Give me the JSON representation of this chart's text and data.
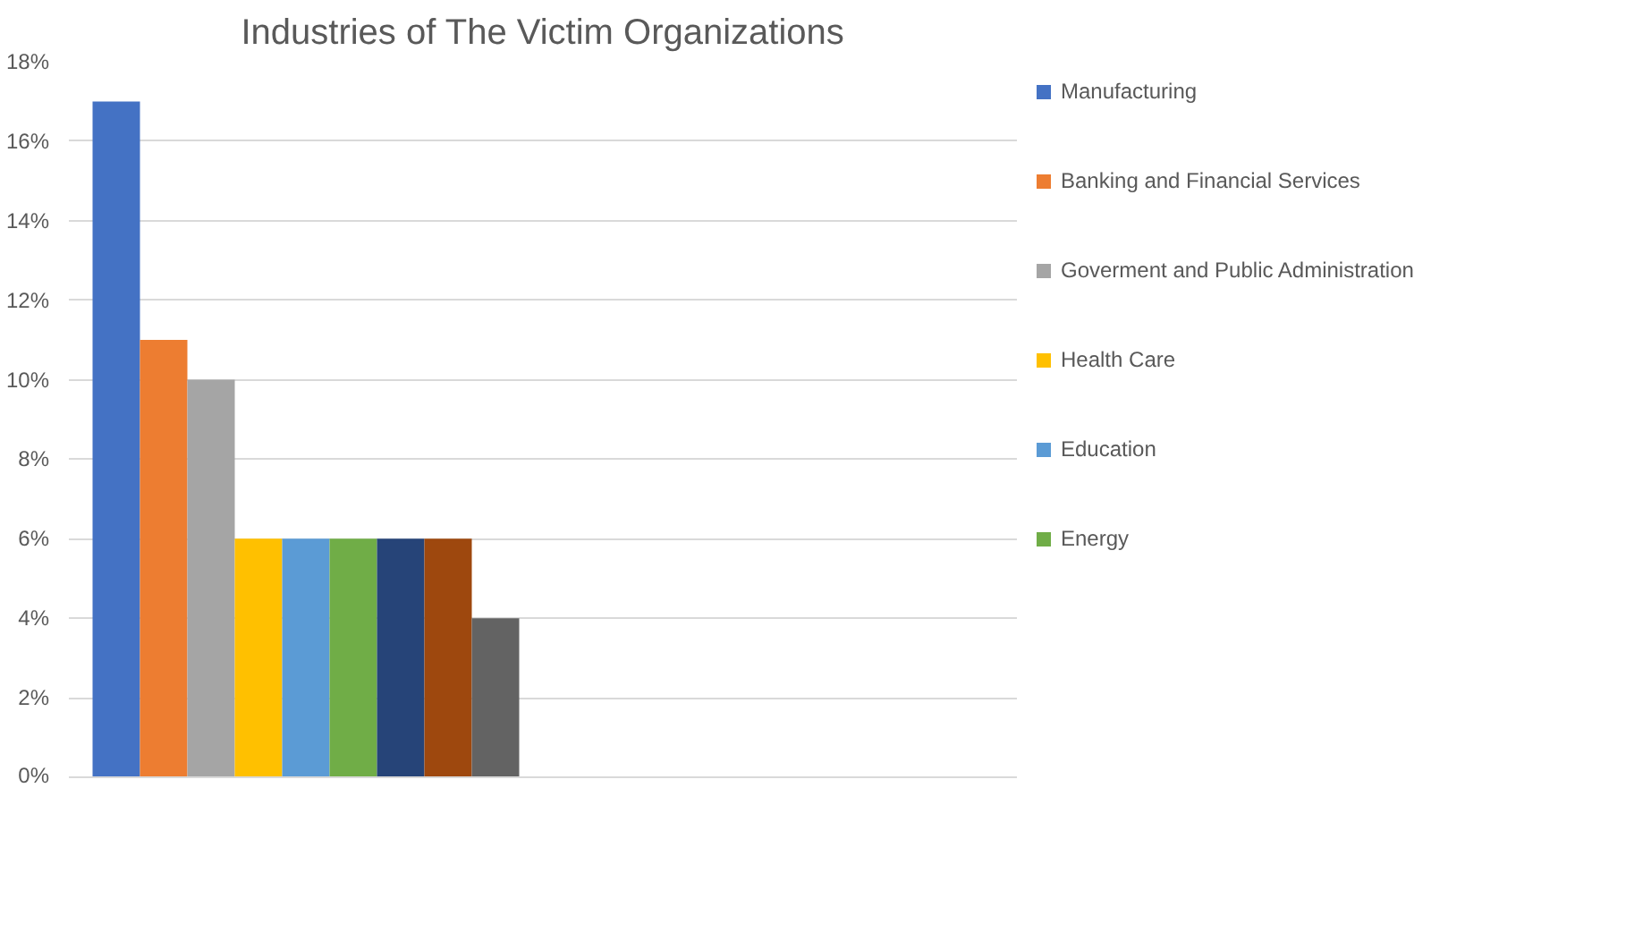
{
  "chart_data": {
    "type": "bar",
    "title": "Industries of The Victim Organizations",
    "categories": [
      null,
      null
    ],
    "series": [
      {
        "name": "Manufacturing",
        "color": "#4472c4",
        "values": [
          17,
          null
        ]
      },
      {
        "name": "Banking and Financial Services",
        "color": "#ed7d31",
        "values": [
          11,
          null
        ]
      },
      {
        "name": "Goverment and Public Administration",
        "color": "#a5a5a5",
        "values": [
          10,
          null
        ]
      },
      {
        "name": "Health Care",
        "color": "#ffc000",
        "values": [
          6,
          null
        ]
      },
      {
        "name": "Education",
        "color": "#5b9bd5",
        "values": [
          6,
          null
        ]
      },
      {
        "name": "Energy",
        "color": "#70ad47",
        "values": [
          6,
          null
        ]
      },
      {
        "color": "#264478",
        "values": [
          6,
          null
        ]
      },
      {
        "color": "#9e480e",
        "values": [
          6,
          null
        ]
      },
      {
        "color": "#636363",
        "values": [
          4,
          null
        ]
      }
    ],
    "ylim": [
      0,
      18
    ],
    "yticks": [
      {
        "value": 0,
        "label": "0%"
      },
      {
        "value": 2,
        "label": "2%"
      },
      {
        "value": 4,
        "label": "4%"
      },
      {
        "value": 6,
        "label": "6%"
      },
      {
        "value": 8,
        "label": "8%"
      },
      {
        "value": 10,
        "label": "10%"
      },
      {
        "value": 12,
        "label": "12%"
      },
      {
        "value": 14,
        "label": "14%"
      },
      {
        "value": 16,
        "label": "16%"
      },
      {
        "value": 18,
        "label": "18%"
      }
    ],
    "grid": "y",
    "legend": "right"
  }
}
